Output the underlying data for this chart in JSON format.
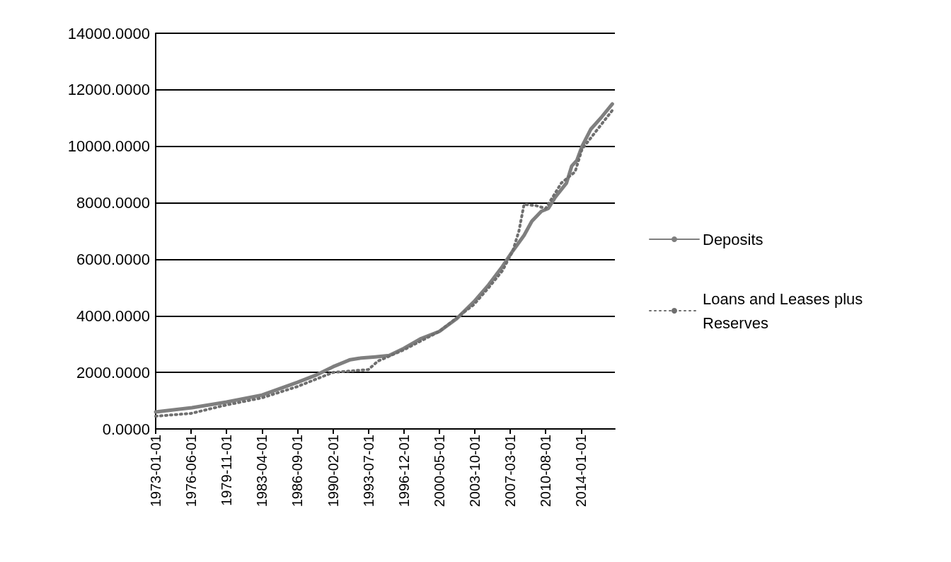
{
  "chart_data": {
    "type": "line",
    "x": [
      "1973-01-01",
      "1976-07-01",
      "1979-11-01",
      "1983-04-01",
      "1986-09-01",
      "1988-06-01",
      "1990-02-01",
      "1991-10-01",
      "1992-08-01",
      "1994-03-01",
      "1995-07-01",
      "1996-12-01",
      "1998-08-01",
      "2000-05-01",
      "2002-01-01",
      "2003-09-01",
      "2005-02-01",
      "2006-06-01",
      "2007-06-01",
      "2008-07-01",
      "2009-04-01",
      "2010-03-01",
      "2010-11-01",
      "2011-07-01",
      "2012-08-01",
      "2013-02-01",
      "2013-08-01",
      "2014-02-01",
      "2014-12-01",
      "2016-01-01",
      "2017-01-01"
    ],
    "series": [
      {
        "name": "Deposits",
        "color": "#7f7f7f",
        "line_style": "solid",
        "values": [
          600,
          750,
          950,
          1200,
          1650,
          1900,
          2200,
          2450,
          2500,
          2550,
          2600,
          2850,
          3200,
          3450,
          3900,
          4500,
          5100,
          5750,
          6300,
          6850,
          7350,
          7700,
          7800,
          8200,
          8700,
          9300,
          9500,
          10000,
          10600,
          11050,
          11500
        ]
      },
      {
        "name": "Loans and Leases plus Reserves",
        "color": "#6f6f6f",
        "line_style": "dotted",
        "x": [
          "1973-01-01",
          "1976-06-01",
          "1979-11-01",
          "1983-04-01",
          "1986-09-01",
          "1990-02-01",
          "1991-10-01",
          "1993-07-01",
          "1994-06-01",
          "1996-12-01",
          "2000-05-01",
          "2002-06-01",
          "2003-09-01",
          "2005-02-01",
          "2006-06-01",
          "2007-06-01",
          "2008-01-01",
          "2008-07-01",
          "2009-09-01",
          "2010-08-01",
          "2012-02-01",
          "2013-06-01",
          "2014-02-01",
          "2017-03-01"
        ],
        "values": [
          450,
          550,
          850,
          1100,
          1500,
          2000,
          2050,
          2100,
          2400,
          2800,
          3450,
          4050,
          4400,
          5000,
          5600,
          6300,
          7000,
          7950,
          7900,
          7800,
          8700,
          9100,
          9900,
          11350
        ]
      }
    ],
    "xlim": [
      "1973-01-01",
      "2017-04-01"
    ],
    "xticks": [
      {
        "value": "1973-01-01",
        "label": "1973-01-01"
      },
      {
        "value": "1976-06-01",
        "label": "1976-06-01"
      },
      {
        "value": "1979-11-01",
        "label": "1979-11-01"
      },
      {
        "value": "1983-04-01",
        "label": "1983-04-01"
      },
      {
        "value": "1986-09-01",
        "label": "1986-09-01"
      },
      {
        "value": "1990-02-01",
        "label": "1990-02-01"
      },
      {
        "value": "1993-07-01",
        "label": "1993-07-01"
      },
      {
        "value": "1996-12-01",
        "label": "1996-12-01"
      },
      {
        "value": "2000-05-01",
        "label": "2000-05-01"
      },
      {
        "value": "2003-10-01",
        "label": "2003-10-01"
      },
      {
        "value": "2007-03-01",
        "label": "2007-03-01"
      },
      {
        "value": "2010-08-01",
        "label": "2010-08-01"
      },
      {
        "value": "2014-01-01",
        "label": "2014-01-01"
      }
    ],
    "ylim": [
      0,
      14000
    ],
    "yticks": [
      {
        "value": 0,
        "label": "0.0000"
      },
      {
        "value": 2000,
        "label": "2000.0000"
      },
      {
        "value": 4000,
        "label": "4000.0000"
      },
      {
        "value": 6000,
        "label": "6000.0000"
      },
      {
        "value": 8000,
        "label": "8000.0000"
      },
      {
        "value": 10000,
        "label": "10000.0000"
      },
      {
        "value": 12000,
        "label": "12000.0000"
      },
      {
        "value": 14000,
        "label": "14000.0000"
      }
    ],
    "grid": "y",
    "legend": "right",
    "marker": "none"
  }
}
